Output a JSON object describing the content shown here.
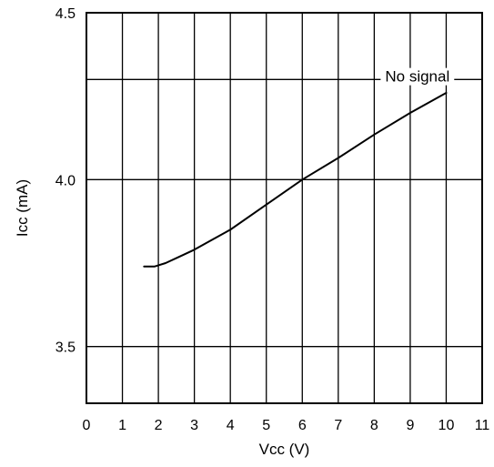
{
  "chart_data": {
    "type": "line",
    "xlabel": "Vcc (V)",
    "ylabel": "Icc (mA)",
    "xlim": [
      0,
      11
    ],
    "ylim": [
      3.33,
      4.5
    ],
    "x_ticks": [
      "0",
      "1",
      "2",
      "3",
      "4",
      "5",
      "6",
      "7",
      "8",
      "9",
      "10",
      "11"
    ],
    "y_ticks": [
      "3.5",
      "4.0",
      "4.5"
    ],
    "grid": true,
    "series": [
      {
        "name": "No signal",
        "x": [
          1.6,
          1.9,
          2.2,
          2.6,
          3.0,
          3.5,
          4.0,
          5.0,
          6.0,
          7.0,
          8.0,
          9.0,
          10.0
        ],
        "y": [
          3.74,
          3.74,
          3.75,
          3.77,
          3.79,
          3.82,
          3.85,
          3.925,
          4.0,
          4.065,
          4.135,
          4.2,
          4.26
        ]
      }
    ],
    "annotations": [
      {
        "text": "No signal",
        "x": 9.2,
        "y": 4.31
      }
    ]
  }
}
